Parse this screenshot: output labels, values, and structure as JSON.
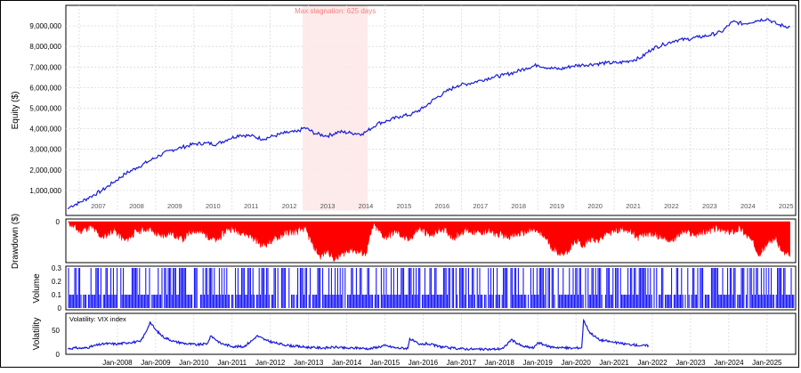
{
  "chart_data": [
    {
      "type": "line",
      "panel": "equity",
      "ylabel": "Equity ($)",
      "ylim": [
        0,
        10000000
      ],
      "ytick_values": [
        1000000,
        2000000,
        3000000,
        4000000,
        5000000,
        6000000,
        7000000,
        8000000,
        9000000
      ],
      "ytick_labels": [
        "1,000,000",
        "2,000,000",
        "3,000,000",
        "4,000,000",
        "5,000,000",
        "6,000,000",
        "7,000,000",
        "8,000,000",
        "9,000,000"
      ],
      "year_labels": [
        "2007",
        "2008",
        "2009",
        "2010",
        "2011",
        "2012",
        "2013",
        "2014",
        "2015",
        "2016",
        "2017",
        "2018",
        "2019",
        "2020",
        "2021",
        "2022",
        "2023",
        "2024",
        "2025"
      ],
      "annotation": "Max stagnation: 625 days",
      "stagnation_range": [
        2012.85,
        2014.55
      ],
      "grid": true,
      "color": "#1a1ad6",
      "series": [
        {
          "x": [
            2006.7,
            2006.8,
            2007.0,
            2007.3,
            2007.6,
            2007.9,
            2008.2,
            2008.5,
            2008.8,
            2009.1,
            2009.4,
            2009.7,
            2010.0,
            2010.3,
            2010.6,
            2010.9,
            2011.2,
            2011.5,
            2011.8,
            2012.1,
            2012.4,
            2012.7,
            2012.9,
            2013.2,
            2013.5,
            2013.8,
            2014.1,
            2014.4,
            2014.55,
            2014.8,
            2015.1,
            2015.4,
            2015.7,
            2016.0,
            2016.3,
            2016.6,
            2016.9,
            2017.2,
            2017.5,
            2017.8,
            2018.1,
            2018.4,
            2018.7,
            2019.0,
            2019.3,
            2019.6,
            2019.9,
            2020.2,
            2020.5,
            2020.8,
            2021.1,
            2021.4,
            2021.7,
            2022.0,
            2022.3,
            2022.6,
            2022.9,
            2023.2,
            2023.5,
            2023.8,
            2024.1,
            2024.4,
            2024.7,
            2025.0,
            2025.3,
            2025.6
          ],
          "y": [
            100000,
            250000,
            400000,
            700000,
            1000000,
            1400000,
            1800000,
            2100000,
            2400000,
            2700000,
            2950000,
            3100000,
            3250000,
            3300000,
            3250000,
            3500000,
            3700000,
            3650000,
            3500000,
            3650000,
            3800000,
            3850000,
            4050000,
            3750000,
            3650000,
            3850000,
            3800000,
            3750000,
            3900000,
            4250000,
            4400000,
            4600000,
            4700000,
            5000000,
            5450000,
            5800000,
            6100000,
            6200000,
            6350000,
            6500000,
            6600000,
            6750000,
            6950000,
            7100000,
            6950000,
            6900000,
            7050000,
            7100000,
            7150000,
            7200000,
            7200000,
            7300000,
            7450000,
            7900000,
            8100000,
            8300000,
            8350000,
            8450000,
            8550000,
            8700000,
            9200000,
            9100000,
            9250000,
            9350000,
            9050000,
            8950000
          ]
        }
      ]
    },
    {
      "type": "area",
      "panel": "drawdown",
      "ylabel": "Drawdown ($)",
      "ytick_labels": [
        "0"
      ],
      "color": "#ff0000",
      "series": [
        {
          "x": [
            2006.7,
            2007.0,
            2007.3,
            2007.6,
            2007.9,
            2008.2,
            2008.5,
            2008.8,
            2009.1,
            2009.4,
            2009.7,
            2010.0,
            2010.3,
            2010.6,
            2010.9,
            2011.2,
            2011.5,
            2011.8,
            2012.1,
            2012.4,
            2012.7,
            2012.9,
            2013.1,
            2013.3,
            2013.5,
            2013.7,
            2013.9,
            2014.1,
            2014.3,
            2014.5,
            2014.7,
            2015.0,
            2015.3,
            2015.6,
            2015.9,
            2016.2,
            2016.5,
            2016.8,
            2017.1,
            2017.4,
            2017.7,
            2018.0,
            2018.3,
            2018.6,
            2018.9,
            2019.2,
            2019.4,
            2019.6,
            2019.8,
            2020.0,
            2020.2,
            2020.4,
            2020.6,
            2020.8,
            2021.0,
            2021.3,
            2021.6,
            2021.9,
            2022.2,
            2022.5,
            2022.8,
            2023.1,
            2023.4,
            2023.7,
            2024.0,
            2024.3,
            2024.6,
            2024.8,
            2025.0,
            2025.2,
            2025.4,
            2025.6
          ],
          "y": [
            0,
            -300000,
            -150000,
            -500000,
            -250000,
            -600000,
            -300000,
            -200000,
            -450000,
            -350000,
            -550000,
            -250000,
            -400000,
            -600000,
            -200000,
            -300000,
            -450000,
            -750000,
            -550000,
            -350000,
            -300000,
            -200000,
            -700000,
            -1100000,
            -900000,
            -1200000,
            -1000000,
            -850000,
            -950000,
            -1000000,
            -100000,
            -500000,
            -300000,
            -600000,
            -200000,
            -450000,
            -200000,
            -500000,
            -250000,
            -350000,
            -300000,
            -400000,
            -450000,
            -350000,
            -250000,
            -500000,
            -850000,
            -1000000,
            -900000,
            -600000,
            -750000,
            -500000,
            -600000,
            -350000,
            -300000,
            -200000,
            -500000,
            -350000,
            -450000,
            -600000,
            -300000,
            -400000,
            -300000,
            -200000,
            -350000,
            -200000,
            -600000,
            -1000000,
            -700000,
            -500000,
            -950000,
            -1100000
          ]
        }
      ]
    },
    {
      "type": "bar",
      "panel": "volume",
      "ylabel": "Volume",
      "ylim": [
        0,
        0.3
      ],
      "ytick_labels": [
        "0",
        "0.1",
        "0.2",
        "0.3"
      ],
      "color": "#0000ff",
      "description_values": {
        "typical_low": 0.1,
        "typical_high": 0.3
      }
    },
    {
      "type": "line",
      "panel": "volatility",
      "ylabel": "Volatility",
      "legend": "Volatility: VIX index",
      "ylim": [
        0,
        100
      ],
      "ytick_labels": [
        "0",
        "50"
      ],
      "color": "#1a1ad6",
      "xtick_labels": [
        "Jan-2008",
        "Jan-2009",
        "Jan-2010",
        "Jan-2011",
        "Jan-2012",
        "Jan-2013",
        "Jan-2014",
        "Jan-2015",
        "Jan-2016",
        "Jan-2017",
        "Jan-2018",
        "Jan-2019",
        "Jan-2020",
        "Jan-2021",
        "Jan-2022",
        "Jan-2023",
        "Jan-2024",
        "Jan-2025"
      ],
      "series": [
        {
          "x": [
            2006.7,
            2006.9,
            2007.1,
            2007.3,
            2007.5,
            2007.7,
            2008.0,
            2008.3,
            2008.6,
            2008.75,
            2008.85,
            2009.0,
            2009.2,
            2009.5,
            2009.8,
            2010.1,
            2010.35,
            2010.45,
            2010.7,
            2011.0,
            2011.3,
            2011.55,
            2011.65,
            2011.9,
            2012.2,
            2012.5,
            2012.8,
            2013.1,
            2013.4,
            2013.7,
            2014.0,
            2014.3,
            2014.6,
            2014.8,
            2015.0,
            2015.3,
            2015.6,
            2015.65,
            2015.9,
            2016.1,
            2016.4,
            2016.7,
            2017.0,
            2017.3,
            2017.6,
            2017.9,
            2018.1,
            2018.3,
            2018.6,
            2018.9,
            2019.0,
            2019.3,
            2019.6,
            2019.9,
            2020.15,
            2020.2,
            2020.35,
            2020.6,
            2020.9,
            2021.2,
            2021.5,
            2021.7,
            2021.9
          ],
          "y": [
            12,
            14,
            13,
            17,
            22,
            25,
            24,
            28,
            30,
            55,
            80,
            60,
            42,
            30,
            25,
            22,
            25,
            45,
            26,
            18,
            17,
            35,
            45,
            33,
            25,
            20,
            17,
            15,
            14,
            16,
            13,
            14,
            12,
            16,
            20,
            14,
            13,
            38,
            22,
            25,
            18,
            14,
            12,
            11,
            10,
            11,
            13,
            35,
            18,
            14,
            28,
            17,
            15,
            13,
            15,
            85,
            55,
            35,
            30,
            25,
            22,
            20,
            20
          ]
        }
      ]
    }
  ]
}
